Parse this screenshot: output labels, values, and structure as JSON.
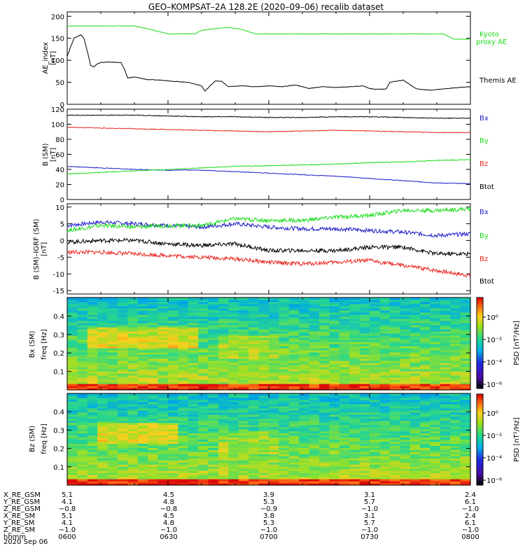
{
  "title": "GEO–KOMPSAT–2A 128.2E (2020–09–06) recalib dataset",
  "colors": {
    "black": "#000000",
    "red": "#e8251e",
    "green": "#1bdc1b",
    "blue": "#1f1fc8"
  },
  "chart_data": [
    {
      "type": "line",
      "panel": "ae",
      "ylabel": [
        "AE_index",
        "[nT]"
      ],
      "ylim": [
        0,
        210
      ],
      "yticks": [
        0,
        50,
        100,
        150,
        200
      ],
      "xlim": [
        0,
        120
      ],
      "series": [
        {
          "name": "Kyoto\nproxy AE",
          "label_lines": [
            "Kyoto",
            "proxy AE"
          ],
          "color": "#1bdc1b",
          "x": [
            0,
            20,
            25,
            30,
            38,
            40,
            44,
            48,
            52,
            56,
            60,
            62,
            66,
            80,
            100,
            112,
            115,
            120
          ],
          "y": [
            178,
            178,
            170,
            160,
            160,
            168,
            172,
            175,
            170,
            160,
            160,
            160,
            160,
            160,
            160,
            160,
            148,
            148
          ]
        },
        {
          "name": "Themis AE",
          "label_lines": [
            "Themis AE"
          ],
          "color": "#000000",
          "x": [
            0,
            2,
            4,
            5,
            6,
            7,
            8,
            9,
            10,
            12,
            16,
            17,
            18,
            20,
            24,
            28,
            32,
            36,
            40,
            41,
            44,
            46,
            48,
            52,
            56,
            60,
            64,
            68,
            72,
            76,
            80,
            84,
            88,
            90,
            92,
            95,
            96,
            100,
            104,
            108,
            112,
            116,
            120
          ],
          "y": [
            110,
            150,
            158,
            150,
            120,
            88,
            85,
            92,
            95,
            96,
            95,
            80,
            60,
            62,
            56,
            55,
            52,
            50,
            42,
            30,
            53,
            52,
            40,
            42,
            40,
            42,
            40,
            44,
            36,
            40,
            38,
            40,
            42,
            36,
            34,
            35,
            50,
            55,
            35,
            32,
            35,
            38,
            40
          ]
        }
      ]
    },
    {
      "type": "line",
      "panel": "b",
      "ylabel": [
        "B (SM)",
        "[nT]"
      ],
      "ylim": [
        0,
        120
      ],
      "yticks": [
        0,
        20,
        40,
        60,
        80,
        100,
        120
      ],
      "xlim": [
        0,
        120
      ],
      "series": [
        {
          "name": "Bx",
          "color": "#1f1fc8",
          "x": [
            0,
            10,
            20,
            30,
            40,
            50,
            60,
            70,
            80,
            90,
            100,
            110,
            120
          ],
          "y": [
            44,
            42,
            40,
            39,
            39,
            37,
            35,
            33,
            31,
            28,
            25,
            22,
            21
          ]
        },
        {
          "name": "By",
          "color": "#1bdc1b",
          "x": [
            0,
            10,
            20,
            30,
            40,
            50,
            60,
            70,
            80,
            90,
            100,
            110,
            120
          ],
          "y": [
            34,
            36,
            38,
            40,
            42,
            44,
            45,
            46,
            47,
            49,
            50,
            52,
            53
          ]
        },
        {
          "name": "Bz",
          "color": "#e8251e",
          "x": [
            0,
            10,
            20,
            30,
            40,
            50,
            60,
            70,
            80,
            90,
            100,
            110,
            120
          ],
          "y": [
            96,
            95,
            94,
            93,
            92,
            91,
            90,
            91,
            92,
            91,
            90,
            89,
            89
          ]
        },
        {
          "name": "Btot",
          "color": "#000000",
          "x": [
            0,
            10,
            20,
            30,
            40,
            50,
            60,
            70,
            80,
            90,
            100,
            110,
            120
          ],
          "y": [
            112,
            112,
            112,
            111,
            110,
            110,
            109,
            109,
            110,
            110,
            109,
            108,
            108
          ]
        }
      ]
    },
    {
      "type": "line",
      "panel": "db",
      "ylabel": [
        "B (SM)–IGRF (SM)",
        "[nT]"
      ],
      "ylim": [
        -16,
        11
      ],
      "yticks": [
        -15,
        -10,
        -5,
        0,
        5,
        10
      ],
      "xlim": [
        0,
        120
      ],
      "series": [
        {
          "name": "Bx",
          "color": "#1f1fc8",
          "x": [
            0,
            10,
            20,
            30,
            40,
            50,
            60,
            70,
            80,
            90,
            100,
            110,
            120
          ],
          "y": [
            4.5,
            5.5,
            5,
            4.5,
            4,
            5,
            4,
            3.5,
            3.5,
            3,
            2.5,
            1.5,
            2
          ]
        },
        {
          "name": "By",
          "color": "#1bdc1b",
          "x": [
            0,
            10,
            20,
            30,
            40,
            50,
            60,
            70,
            80,
            90,
            100,
            110,
            120
          ],
          "y": [
            3,
            4.5,
            4,
            4.5,
            4.5,
            6.5,
            6,
            6,
            7,
            7.5,
            9,
            9,
            9.5
          ]
        },
        {
          "name": "Bz",
          "color": "#e8251e",
          "x": [
            0,
            10,
            20,
            30,
            40,
            50,
            60,
            70,
            80,
            90,
            100,
            110,
            120
          ],
          "y": [
            -3.5,
            -3.5,
            -4,
            -4.5,
            -5,
            -5.5,
            -6.5,
            -7,
            -6.5,
            -6,
            -7.5,
            -9,
            -10.5
          ]
        },
        {
          "name": "Btot",
          "color": "#000000",
          "x": [
            0,
            10,
            20,
            30,
            40,
            50,
            60,
            70,
            80,
            90,
            100,
            110,
            120
          ],
          "y": [
            -0.5,
            0,
            0,
            -1,
            -1.5,
            -1,
            -3,
            -3,
            -3,
            -2,
            -2,
            -4,
            -4
          ]
        }
      ]
    },
    {
      "type": "heatmap",
      "panel": "bx_psd",
      "ylabel": [
        "Bx (SM)",
        "freq [Hz]"
      ],
      "ylim": [
        0,
        0.5
      ],
      "yticks": [
        0.1,
        0.2,
        0.3,
        0.4
      ],
      "xlim": [
        0,
        120
      ],
      "colorbar": {
        "label": "PSD [nT²/Hz]",
        "ticks": [
          "10⁰",
          "10⁻²",
          "10⁻⁴",
          "10⁻⁶"
        ]
      }
    },
    {
      "type": "heatmap",
      "panel": "bz_psd",
      "ylabel": [
        "Bz (SM)",
        "freq [Hz]"
      ],
      "ylim": [
        0,
        0.5
      ],
      "yticks": [
        0.1,
        0.2,
        0.3,
        0.4
      ],
      "xlim": [
        0,
        120
      ],
      "colorbar": {
        "label": "PSD [nT²/Hz]",
        "ticks": [
          "10⁰",
          "10⁻²",
          "10⁻⁴",
          "10⁻⁶"
        ]
      }
    }
  ],
  "ephemeris": {
    "rows": [
      {
        "label": "X_RE_GSM",
        "values": [
          "5.1",
          "4.5",
          "3.9",
          "3.1",
          "2.4"
        ]
      },
      {
        "label": "Y_RE_GSM",
        "values": [
          "4.1",
          "4.8",
          "5.3",
          "5.7",
          "6.1"
        ]
      },
      {
        "label": "Z_RE_GSM",
        "values": [
          "−0.8",
          "−0.8",
          "−0.9",
          "−1.0",
          "−1.0"
        ]
      },
      {
        "label": "X_RE_SM",
        "values": [
          "5.1",
          "4.5",
          "3.8",
          "3.1",
          "2.4"
        ]
      },
      {
        "label": "Y_RE_SM",
        "values": [
          "4.1",
          "4.8",
          "5.3",
          "5.7",
          "6.1"
        ]
      },
      {
        "label": "Z_RE_SM",
        "values": [
          "−1.0",
          "−1.0",
          "−1.0",
          "−1.0",
          "−1.0"
        ]
      },
      {
        "label": "hhmm",
        "values": [
          "0600",
          "0630",
          "0700",
          "0730",
          "0800"
        ]
      }
    ],
    "date": "2020 Sep 06"
  }
}
